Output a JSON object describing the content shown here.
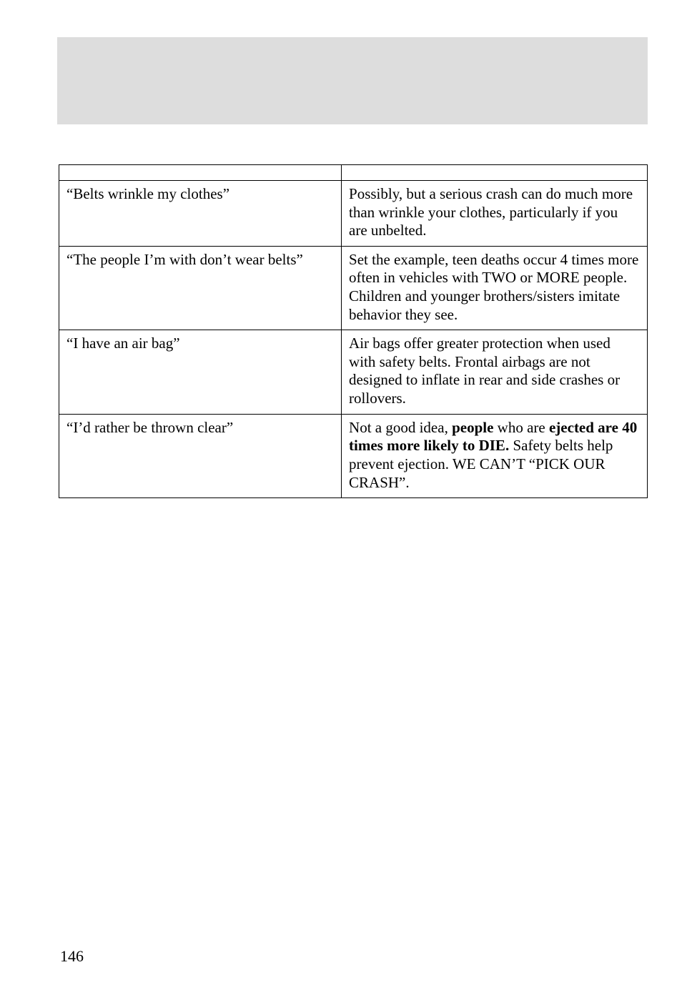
{
  "table": {
    "rows": [
      {
        "left": "“Belts wrinkle my clothes”",
        "right_segments": [
          {
            "text": "Possibly, but a serious crash can do much more than wrinkle your clothes, particularly if you are unbelted.",
            "bold": false
          }
        ]
      },
      {
        "left": "“The people I’m with don’t wear belts”",
        "right_segments": [
          {
            "text": "Set the example, teen deaths occur 4 times more often in vehicles with TWO or MORE people. Children and younger brothers/sisters imitate behavior they see.",
            "bold": false
          }
        ]
      },
      {
        "left": "“I have an air bag”",
        "right_segments": [
          {
            "text": "Air bags offer greater protection when used with safety belts. Frontal airbags are not designed to inflate in rear and side crashes or rollovers.",
            "bold": false
          }
        ]
      },
      {
        "left": "“I’d rather be thrown clear”",
        "right_segments": [
          {
            "text": "Not a good idea, ",
            "bold": false
          },
          {
            "text": "people",
            "bold": true
          },
          {
            "text": " who are ",
            "bold": false
          },
          {
            "text": "ejected are 40 times more likely to DIE.",
            "bold": true
          },
          {
            "text": " Safety belts help prevent ejection. WE CAN’T “PICK OUR CRASH”.",
            "bold": false
          }
        ]
      }
    ]
  },
  "page_number": "146"
}
